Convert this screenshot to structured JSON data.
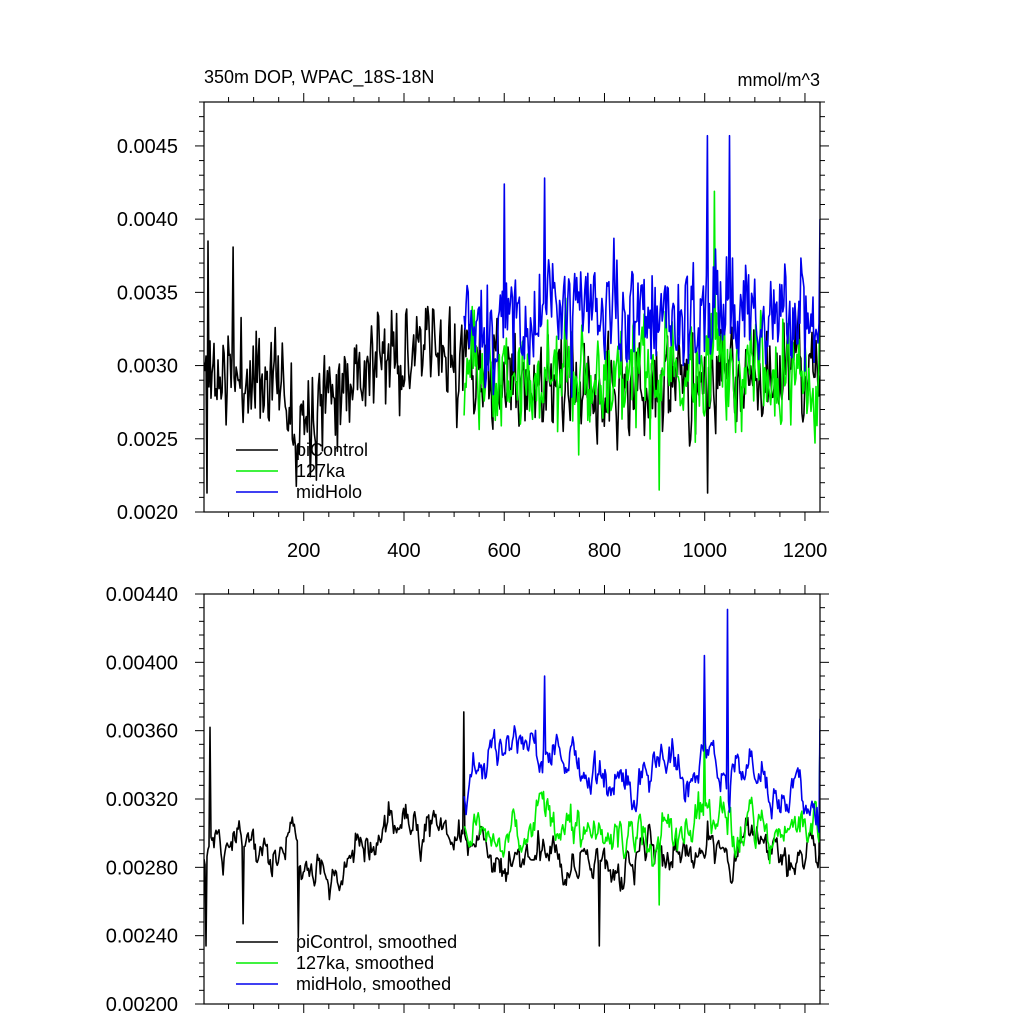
{
  "figure": {
    "title_left": "350m DOP, WPAC_18S-18N",
    "title_right": "mmol/m^3"
  },
  "colors": {
    "piControl": "#000000",
    "127ka": "#00ee00",
    "midHolo": "#0000ee",
    "axis": "#000000",
    "background": "#ffffff"
  },
  "chart_data": [
    {
      "type": "line",
      "title": "350m DOP, WPAC_18S-18N",
      "units_label": "mmol/m^3",
      "xlim": [
        1,
        1230
      ],
      "ylim": [
        0.002,
        0.0048
      ],
      "x_ticks": [
        200,
        400,
        600,
        800,
        1000,
        1200
      ],
      "x_tick_labels": [
        "200",
        "400",
        "600",
        "800",
        "1000",
        "1200"
      ],
      "y_ticks": [
        0.002,
        0.0025,
        0.003,
        0.0035,
        0.004,
        0.0045
      ],
      "y_tick_labels": [
        "0.0020",
        "0.0025",
        "0.0030",
        "0.0035",
        "0.0040",
        "0.0045"
      ],
      "legend_position": "lower-left",
      "series": [
        {
          "name": "piControl",
          "color": "#000000",
          "x_start": 1,
          "x_end": 1230,
          "n": 615,
          "seed": 11,
          "segments": [
            [
              1,
              0.00295
            ],
            [
              60,
              0.00292
            ],
            [
              150,
              0.00293
            ],
            [
              190,
              0.00262
            ],
            [
              260,
              0.0029
            ],
            [
              400,
              0.0031
            ],
            [
              520,
              0.00305
            ],
            [
              600,
              0.00288
            ],
            [
              800,
              0.00281
            ],
            [
              1000,
              0.0029
            ],
            [
              1230,
              0.00298
            ]
          ],
          "noise": 0.00032,
          "rho": 0.25,
          "min": 0.00212,
          "max": 0.00385,
          "points": [
            [
              10,
              0.00385
            ],
            [
              8,
              0.00213
            ],
            [
              1005,
              0.00213
            ],
            [
              60,
              0.00381
            ]
          ]
        },
        {
          "name": "127ka",
          "color": "#00ee00",
          "x_start": 520,
          "x_end": 1230,
          "n": 355,
          "seed": 23,
          "segments": [
            [
              520,
              0.00295
            ],
            [
              800,
              0.00292
            ],
            [
              1230,
              0.00298
            ]
          ],
          "noise": 0.00035,
          "rho": 0.25,
          "min": 0.00215,
          "max": 0.00419,
          "points": [
            [
              1020,
              0.00419
            ],
            [
              910,
              0.00215
            ],
            [
              1230,
              0.00368
            ]
          ]
        },
        {
          "name": "midHolo",
          "color": "#0000ee",
          "x_start": 520,
          "x_end": 1230,
          "n": 355,
          "seed": 37,
          "segments": [
            [
              520,
              0.00325
            ],
            [
              700,
              0.00335
            ],
            [
              1000,
              0.00335
            ],
            [
              1230,
              0.0033
            ]
          ],
          "noise": 0.00035,
          "rho": 0.25,
          "min": 0.00265,
          "max": 0.00457,
          "points": [
            [
              1005,
              0.00457
            ],
            [
              1050,
              0.00457
            ],
            [
              1230,
              0.004
            ],
            [
              680,
              0.00428
            ],
            [
              600,
              0.00424
            ]
          ]
        }
      ],
      "legend": [
        "piControl",
        "127ka",
        "midHolo"
      ]
    },
    {
      "type": "line",
      "xlim": [
        1,
        1230
      ],
      "ylim": [
        0.002,
        0.0044
      ],
      "x_ticks": [
        200,
        400,
        600,
        800,
        1000,
        1200
      ],
      "x_tick_labels": [],
      "y_ticks": [
        0.002,
        0.0024,
        0.0028,
        0.0032,
        0.0036,
        0.004,
        0.0044
      ],
      "y_tick_labels": [
        "0.00200",
        "0.00240",
        "0.00280",
        "0.00320",
        "0.00360",
        "0.00400",
        "0.00440"
      ],
      "legend_position": "lower-left",
      "series": [
        {
          "name": "piControl, smoothed",
          "color": "#000000",
          "x_start": 1,
          "x_end": 1230,
          "n": 615,
          "seed": 51,
          "segments": [
            [
              1,
              0.00295
            ],
            [
              120,
              0.003
            ],
            [
              180,
              0.00295
            ],
            [
              200,
              0.0027
            ],
            [
              260,
              0.0028
            ],
            [
              330,
              0.00295
            ],
            [
              450,
              0.00305
            ],
            [
              520,
              0.00295
            ],
            [
              600,
              0.00285
            ],
            [
              800,
              0.00282
            ],
            [
              1000,
              0.00288
            ],
            [
              1230,
              0.00295
            ]
          ],
          "noise": 0.00014,
          "rho": 0.8,
          "min": 0.00234,
          "max": 0.00371,
          "points": [
            [
              5,
              0.00234
            ],
            [
              14,
              0.00362
            ],
            [
              80,
              0.00247
            ],
            [
              190,
              0.00239
            ],
            [
              520,
              0.00371
            ],
            [
              790,
              0.00234
            ],
            [
              1005,
              0.00307
            ],
            [
              1230,
              0.0036
            ]
          ]
        },
        {
          "name": "127ka, smoothed",
          "color": "#00ee00",
          "x_start": 520,
          "x_end": 1230,
          "n": 355,
          "seed": 67,
          "segments": [
            [
              520,
              0.003
            ],
            [
              800,
              0.00302
            ],
            [
              1230,
              0.00305
            ]
          ],
          "noise": 0.00016,
          "rho": 0.8,
          "min": 0.00258,
          "max": 0.00362,
          "points": [
            [
              1000,
              0.00362
            ],
            [
              910,
              0.00258
            ],
            [
              1230,
              0.0036
            ]
          ]
        },
        {
          "name": "midHolo, smoothed",
          "color": "#0000ee",
          "x_start": 520,
          "x_end": 1230,
          "n": 355,
          "seed": 79,
          "segments": [
            [
              520,
              0.0032
            ],
            [
              560,
              0.00355
            ],
            [
              700,
              0.00345
            ],
            [
              800,
              0.0033
            ],
            [
              1000,
              0.0034
            ],
            [
              1230,
              0.0032
            ]
          ],
          "noise": 0.00016,
          "rho": 0.8,
          "min": 0.00274,
          "max": 0.00431,
          "points": [
            [
              1045,
              0.00431
            ],
            [
              1000,
              0.00404
            ],
            [
              680,
              0.00392
            ],
            [
              1230,
              0.00367
            ]
          ]
        }
      ],
      "legend": [
        "piControl, smoothed",
        "127ka, smoothed",
        "midHolo, smoothed"
      ]
    }
  ]
}
